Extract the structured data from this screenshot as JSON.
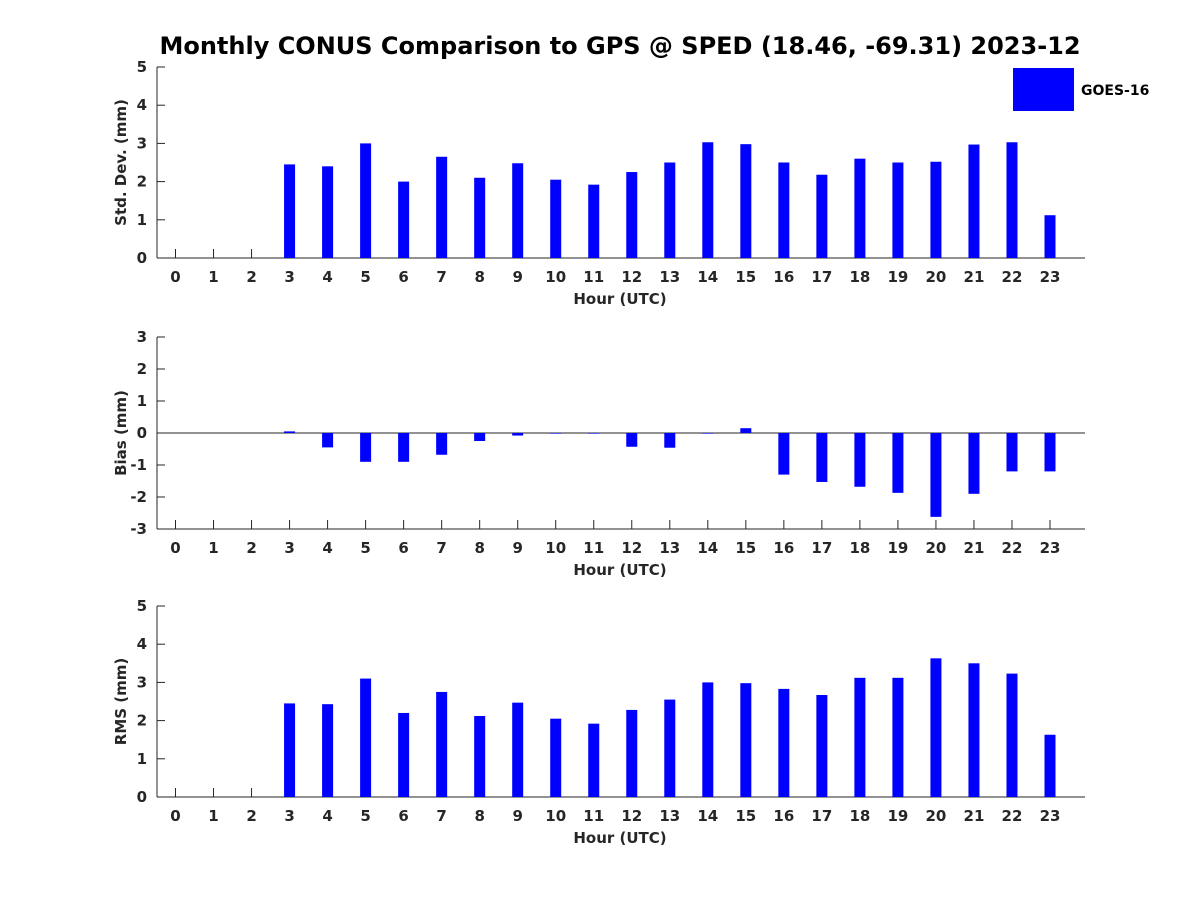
{
  "title": "Monthly CONUS Comparison to GPS @ SPED (18.46, -69.31) 2023-12",
  "legend": {
    "label": "GOES-16",
    "color": "#0000ff",
    "placement": "top-right"
  },
  "chart_data": [
    {
      "type": "bar",
      "name": "std-dev",
      "ylabel": "Std. Dev. (mm)",
      "xlabel": "Hour (UTC)",
      "ylim": [
        0,
        5
      ],
      "yticks": [
        0,
        1,
        2,
        3,
        4,
        5
      ],
      "categories": [
        "0",
        "1",
        "2",
        "3",
        "4",
        "5",
        "6",
        "7",
        "8",
        "9",
        "10",
        "11",
        "12",
        "13",
        "14",
        "15",
        "16",
        "17",
        "18",
        "19",
        "20",
        "21",
        "22",
        "23"
      ],
      "series": [
        {
          "name": "GOES-16",
          "values": [
            0,
            0,
            0,
            2.45,
            2.4,
            3.0,
            2.0,
            2.65,
            2.1,
            2.48,
            2.05,
            1.92,
            2.25,
            2.5,
            3.03,
            2.98,
            2.5,
            2.18,
            2.6,
            2.5,
            2.52,
            2.97,
            3.03,
            1.12
          ]
        }
      ]
    },
    {
      "type": "bar",
      "name": "bias",
      "ylabel": "Bias (mm)",
      "xlabel": "Hour (UTC)",
      "ylim": [
        -3,
        3
      ],
      "yticks": [
        -3,
        -2,
        -1,
        0,
        1,
        2,
        3
      ],
      "categories": [
        "0",
        "1",
        "2",
        "3",
        "4",
        "5",
        "6",
        "7",
        "8",
        "9",
        "10",
        "11",
        "12",
        "13",
        "14",
        "15",
        "16",
        "17",
        "18",
        "19",
        "20",
        "21",
        "22",
        "23"
      ],
      "series": [
        {
          "name": "GOES-16",
          "values": [
            0,
            0,
            0,
            0.05,
            -0.45,
            -0.9,
            -0.9,
            -0.68,
            -0.25,
            -0.08,
            -0.02,
            -0.02,
            -0.43,
            -0.46,
            -0.02,
            0.15,
            -1.3,
            -1.53,
            -1.68,
            -1.87,
            -2.62,
            -1.9,
            -1.2,
            -1.2
          ]
        }
      ]
    },
    {
      "type": "bar",
      "name": "rms",
      "ylabel": "RMS (mm)",
      "xlabel": "Hour (UTC)",
      "ylim": [
        0,
        5
      ],
      "yticks": [
        0,
        1,
        2,
        3,
        4,
        5
      ],
      "categories": [
        "0",
        "1",
        "2",
        "3",
        "4",
        "5",
        "6",
        "7",
        "8",
        "9",
        "10",
        "11",
        "12",
        "13",
        "14",
        "15",
        "16",
        "17",
        "18",
        "19",
        "20",
        "21",
        "22",
        "23"
      ],
      "series": [
        {
          "name": "GOES-16",
          "values": [
            0,
            0,
            0,
            2.45,
            2.43,
            3.1,
            2.2,
            2.75,
            2.12,
            2.47,
            2.05,
            1.92,
            2.28,
            2.55,
            3.0,
            2.98,
            2.83,
            2.67,
            3.12,
            3.12,
            3.63,
            3.5,
            3.23,
            1.63
          ]
        }
      ]
    }
  ]
}
